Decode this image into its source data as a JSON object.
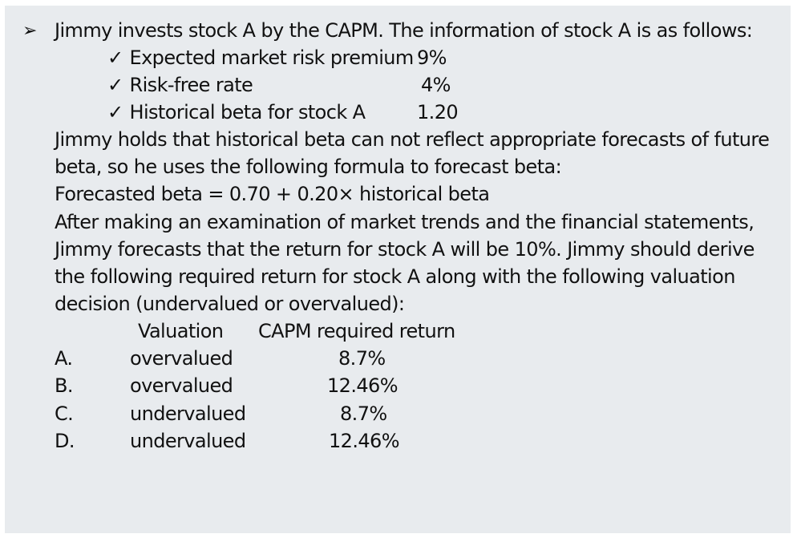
{
  "question": {
    "bullet": "➢",
    "intro": "Jimmy invests stock A by the CAPM. The information of stock A is as follows:",
    "check_mark": "✓",
    "items": [
      {
        "label": "Expected market risk premium",
        "value": "9%"
      },
      {
        "label": "Risk-free rate",
        "value": "4%"
      },
      {
        "label": "Historical beta  for stock A",
        "value": "1.20"
      }
    ],
    "paragraph_lines": [
      "Jimmy holds that   historical beta can not reflect appropriate forecasts of future",
      "beta, so he uses the following formula to forecast beta:",
      "Forecasted  beta = 0.70 + 0.20× historical beta",
      "After making  an examination of market trends and the financial statements,",
      "Jimmy forecasts that the return for stock A will be 10%. Jimmy should derive",
      "the following required return for stock A along with the following valuation",
      "decision (undervalued or overvalued):"
    ]
  },
  "table": {
    "header_valuation": "Valuation",
    "header_return": "CAPM required return",
    "options": [
      {
        "letter": "A.",
        "valuation": "overvalued",
        "return": "8.7%"
      },
      {
        "letter": "B.",
        "valuation": "overvalued",
        "return": "12.46%"
      },
      {
        "letter": "C.",
        "valuation": "undervalued",
        "return": "8.7%"
      },
      {
        "letter": "D.",
        "valuation": "undervalued",
        "return": "12.46%"
      }
    ]
  }
}
